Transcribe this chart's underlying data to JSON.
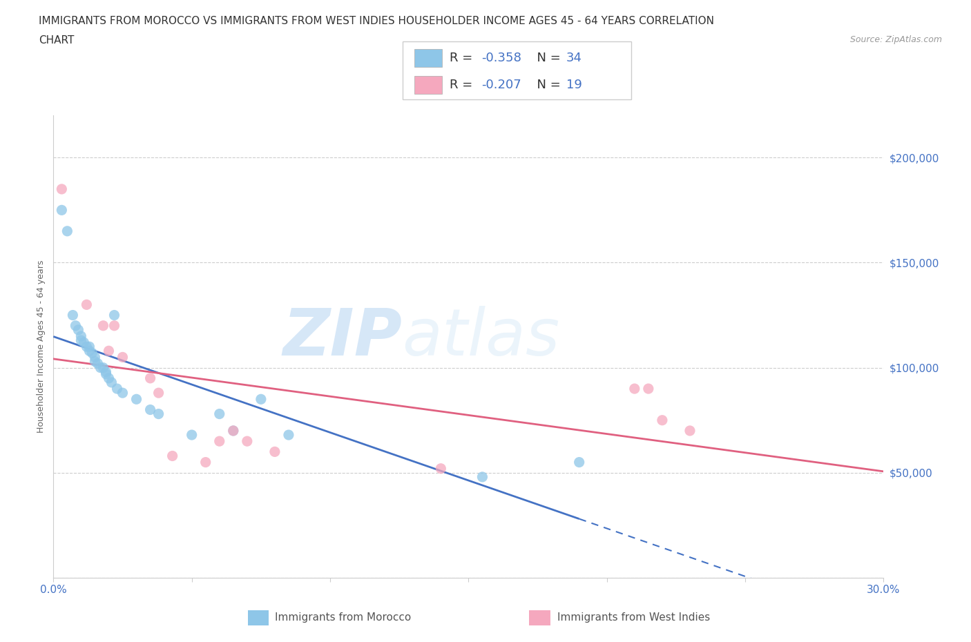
{
  "title_line1": "IMMIGRANTS FROM MOROCCO VS IMMIGRANTS FROM WEST INDIES HOUSEHOLDER INCOME AGES 45 - 64 YEARS CORRELATION",
  "title_line2": "CHART",
  "source_text": "Source: ZipAtlas.com",
  "ylabel": "Householder Income Ages 45 - 64 years",
  "watermark_zip": "ZIP",
  "watermark_atlas": "atlas",
  "morocco_color": "#8ec6e8",
  "west_indies_color": "#f5a8be",
  "morocco_line_color": "#4472c4",
  "west_indies_line_color": "#e06080",
  "morocco_R": -0.358,
  "morocco_N": 34,
  "west_indies_R": -0.207,
  "west_indies_N": 19,
  "xlim": [
    0.0,
    0.3
  ],
  "ylim": [
    0,
    220000
  ],
  "yticks": [
    0,
    50000,
    100000,
    150000,
    200000
  ],
  "xticks": [
    0.0,
    0.05,
    0.1,
    0.15,
    0.2,
    0.25,
    0.3
  ],
  "morocco_x": [
    0.003,
    0.005,
    0.007,
    0.008,
    0.009,
    0.01,
    0.01,
    0.011,
    0.012,
    0.013,
    0.013,
    0.014,
    0.015,
    0.015,
    0.016,
    0.017,
    0.018,
    0.019,
    0.019,
    0.02,
    0.021,
    0.022,
    0.023,
    0.025,
    0.03,
    0.035,
    0.038,
    0.05,
    0.06,
    0.065,
    0.075,
    0.085,
    0.19,
    0.155
  ],
  "morocco_y": [
    175000,
    165000,
    125000,
    120000,
    118000,
    115000,
    113000,
    112000,
    110000,
    110000,
    108000,
    107000,
    105000,
    103000,
    102000,
    100000,
    100000,
    98000,
    97000,
    95000,
    93000,
    125000,
    90000,
    88000,
    85000,
    80000,
    78000,
    68000,
    78000,
    70000,
    85000,
    68000,
    55000,
    48000
  ],
  "west_indies_x": [
    0.003,
    0.012,
    0.018,
    0.02,
    0.022,
    0.025,
    0.035,
    0.038,
    0.043,
    0.055,
    0.06,
    0.065,
    0.07,
    0.08,
    0.14,
    0.21,
    0.215,
    0.22,
    0.23
  ],
  "west_indies_y": [
    185000,
    130000,
    120000,
    108000,
    120000,
    105000,
    95000,
    88000,
    58000,
    55000,
    65000,
    70000,
    65000,
    60000,
    52000,
    90000,
    90000,
    75000,
    70000
  ],
  "title_fontsize": 11,
  "axis_label_fontsize": 9,
  "tick_fontsize": 11,
  "source_fontsize": 9,
  "background_color": "#ffffff",
  "grid_color": "#cccccc",
  "axis_color": "#cccccc",
  "tick_label_color": "#4472c4",
  "legend_label_color": "#333333",
  "legend_value_color": "#4472c4",
  "bottom_legend_color": "#555555"
}
